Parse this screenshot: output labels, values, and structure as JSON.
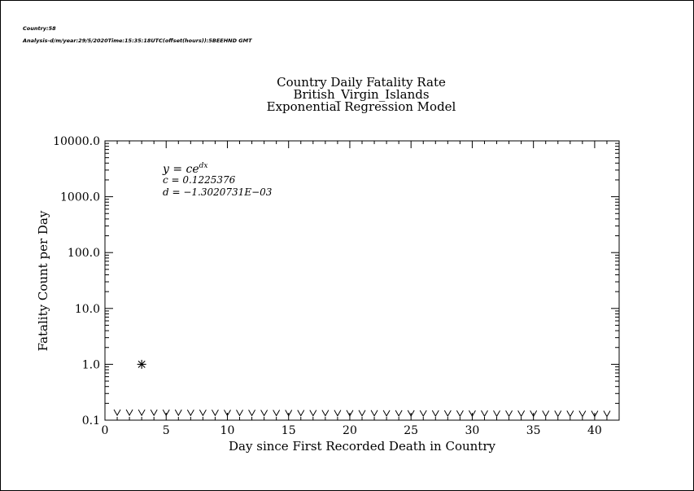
{
  "header": {
    "line1": "Country:58",
    "line2": "Analysis-d/m/year:29/5/2020Time:15:35:18UTC(offset(hours)):5BEEHND GMT"
  },
  "chart_data": {
    "type": "scatter",
    "title": [
      "Country Daily Fatality Rate",
      "British_Virgin_Islands",
      "Exponential Regression Model"
    ],
    "xlabel": "Day since First Recorded Death in Country",
    "ylabel": "Fatality Count per Day",
    "xlim": [
      0,
      42
    ],
    "ylim": [
      0.1,
      10000.0
    ],
    "y_scale": "log",
    "x_ticks": [
      0,
      5,
      10,
      15,
      20,
      25,
      30,
      35,
      40
    ],
    "x_tick_labels": [
      "0",
      "5",
      "10",
      "15",
      "20",
      "25",
      "30",
      "35",
      "40"
    ],
    "y_ticks": [
      0.1,
      1.0,
      10.0,
      100.0,
      1000.0,
      10000.0
    ],
    "y_tick_labels": [
      "0.1",
      "1.0",
      "10.0",
      "100.0",
      "1000.0",
      "10000.0"
    ],
    "observed": {
      "marker": "asterisk",
      "x": [
        3
      ],
      "y": [
        1.0
      ]
    },
    "model": {
      "marker": "v",
      "x": [
        1,
        2,
        3,
        4,
        5,
        6,
        7,
        8,
        9,
        10,
        11,
        12,
        13,
        14,
        15,
        16,
        17,
        18,
        19,
        20,
        21,
        22,
        23,
        24,
        25,
        26,
        27,
        28,
        29,
        30,
        31,
        32,
        33,
        34,
        35,
        36,
        37,
        38,
        39,
        40,
        41
      ],
      "c": 0.1225376,
      "d": -0.0013020731
    },
    "annotations": {
      "equation": "y = ce",
      "equation_exp": "dx",
      "c_line": "c = 0.1225376",
      "d_line": "d = −1.3020731E−03"
    },
    "grid": false,
    "legend": "none"
  }
}
